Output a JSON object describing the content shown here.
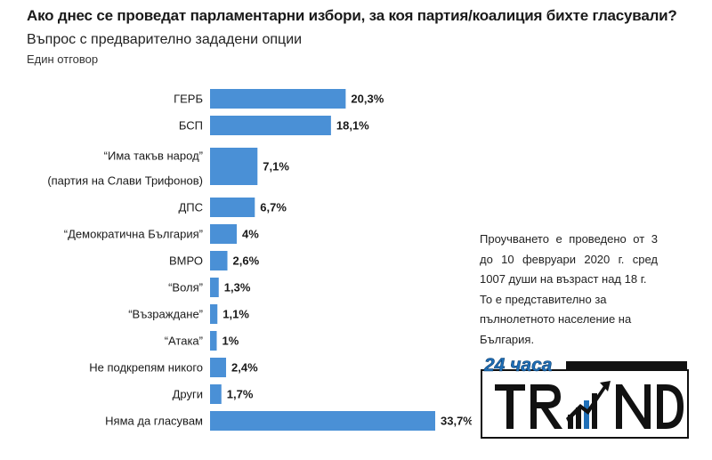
{
  "header": {
    "title": "Ако днес се проведат парламентарни избори, за коя партия/коалиция бихте гласували?",
    "subtitle": "Въпрос с предварително зададени опции",
    "answer_type": "Един отговор"
  },
  "chart_data": {
    "type": "bar",
    "orientation": "horizontal",
    "title": "Ако днес се проведат парламентарни избори, за коя партия/коалиция бихте гласували?",
    "categories": [
      [
        "“Има такъв народ”",
        "(партия на Слави Трифонов)"
      ],
      "ГЕРБ",
      "БСП",
      "ДПС",
      "“Демократична България”",
      "ВМРО",
      "“Воля”",
      "“Възраждане”",
      "“Атака”",
      "Не подкрепям никого",
      "Други",
      "Няма да гласувам"
    ],
    "order": [
      "ГЕРБ",
      "БСП",
      "ИТН",
      "ДПС",
      "ДБ",
      "ВМРО",
      "Воля",
      "Възраждане",
      "Атака",
      "Не подкрепям никого",
      "Други",
      "Няма да гласувам"
    ],
    "rows": [
      {
        "label": [
          "ГЕРБ"
        ],
        "value": 20.3,
        "value_label": "20,3%"
      },
      {
        "label": [
          "БСП"
        ],
        "value": 18.1,
        "value_label": "18,1%"
      },
      {
        "label": [
          "“Има такъв народ”",
          "(партия на Слави Трифонов)"
        ],
        "value": 7.1,
        "value_label": "7,1%"
      },
      {
        "label": [
          "ДПС"
        ],
        "value": 6.7,
        "value_label": "6,7%"
      },
      {
        "label": [
          "“Демократична България”"
        ],
        "value": 4,
        "value_label": "4%"
      },
      {
        "label": [
          "ВМРО"
        ],
        "value": 2.6,
        "value_label": "2,6%"
      },
      {
        "label": [
          "“Воля”"
        ],
        "value": 1.3,
        "value_label": "1,3%"
      },
      {
        "label": [
          "“Възраждане”"
        ],
        "value": 1.1,
        "value_label": "1,1%"
      },
      {
        "label": [
          "“Атака”"
        ],
        "value": 1,
        "value_label": "1%"
      },
      {
        "label": [
          "Не подкрепям никого"
        ],
        "value": 2.4,
        "value_label": "2,4%"
      },
      {
        "label": [
          "Други"
        ],
        "value": 1.7,
        "value_label": "1,7%"
      },
      {
        "label": [
          "Няма да гласувам"
        ],
        "value": 33.7,
        "value_label": "33,7%"
      }
    ],
    "unit": "%",
    "xlim": [
      0,
      33.7
    ],
    "grid": false,
    "bar_color": "#4a90d6"
  },
  "study_note": {
    "paragraphs": [
      "Проучването е проведено от 3 до 10 февруари 2020 г. сред 1007 души на възраст над 18 г.",
      "То е представително за пълнолетното население на България."
    ]
  },
  "logo": {
    "top_text": "24 часа",
    "main_text": "TREND"
  }
}
